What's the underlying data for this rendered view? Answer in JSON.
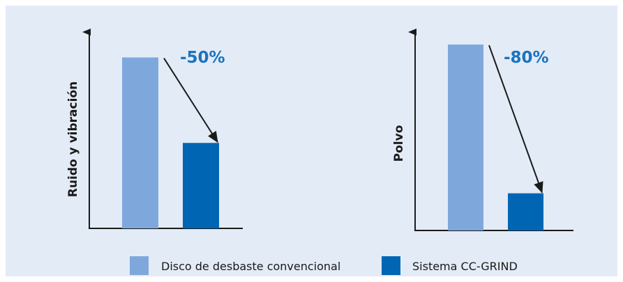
{
  "colors": {
    "background": "#e3ebf6",
    "conventional": "#7ea8dc",
    "ccgrind": "#0066b3",
    "annotation": "#1a73bf",
    "axis": "#1a1a1a"
  },
  "chart_data": [
    {
      "type": "bar",
      "ylabel": "Ruido y vibración",
      "xlabel": "",
      "categories": [
        "Disco de desbaste convencional",
        "Sistema CC-GRIND"
      ],
      "values": [
        100,
        50
      ],
      "ylim": [
        0,
        110
      ],
      "annotation": "-50%",
      "grid": false
    },
    {
      "type": "bar",
      "ylabel": "Polvo",
      "xlabel": "",
      "categories": [
        "Disco de desbaste convencional",
        "Sistema CC-GRIND"
      ],
      "values": [
        100,
        20
      ],
      "ylim": [
        0,
        101.5
      ],
      "annotation": "-80%",
      "grid": false
    }
  ],
  "legend": {
    "position": "bottom",
    "items": [
      {
        "label": "Disco de desbaste convencional",
        "color": "#7ea8dc"
      },
      {
        "label": "Sistema CC-GRIND",
        "color": "#0066b3"
      }
    ]
  }
}
